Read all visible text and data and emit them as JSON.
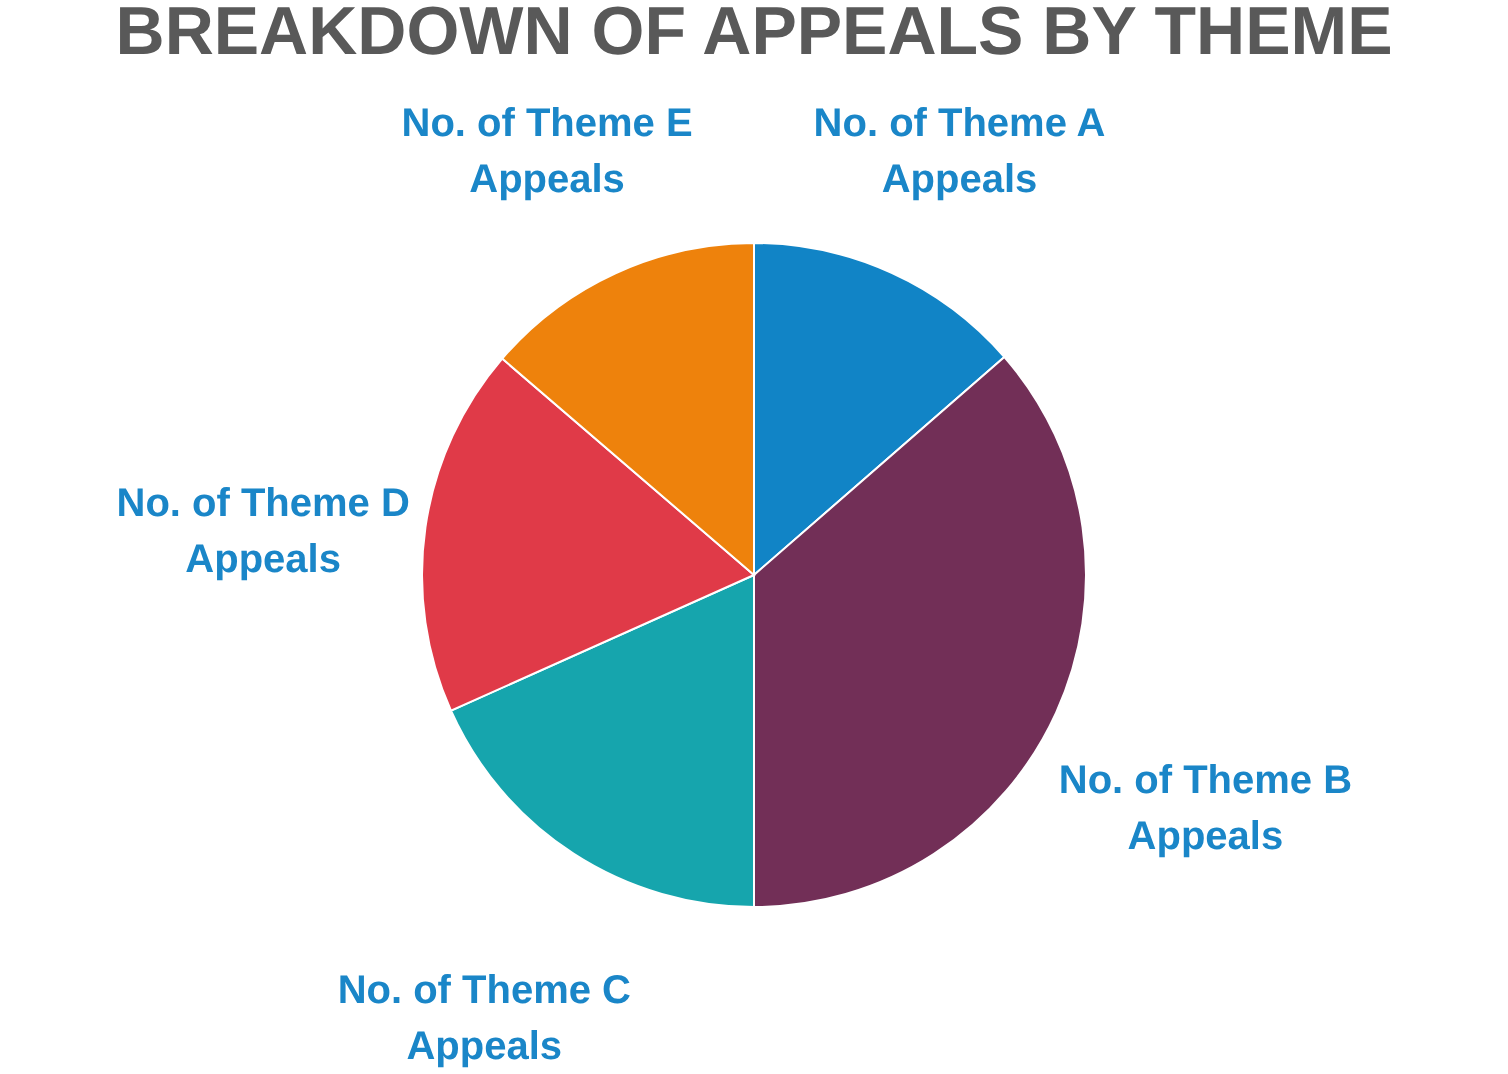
{
  "chart_data": {
    "type": "pie",
    "title": "BREAKDOWN OF APPEALS BY THEME",
    "categories": [
      "No. of Theme A Appeals",
      "No. of Theme B Appeals",
      "No. of Theme C Appeals",
      "No. of Theme D Appeals",
      "No. of Theme E Appeals"
    ],
    "values": [
      13.6,
      36.4,
      18.3,
      18.0,
      13.7
    ],
    "colors": [
      "#1184c6",
      "#722f57",
      "#16a5ad",
      "#e03a48",
      "#ee820c"
    ]
  }
}
